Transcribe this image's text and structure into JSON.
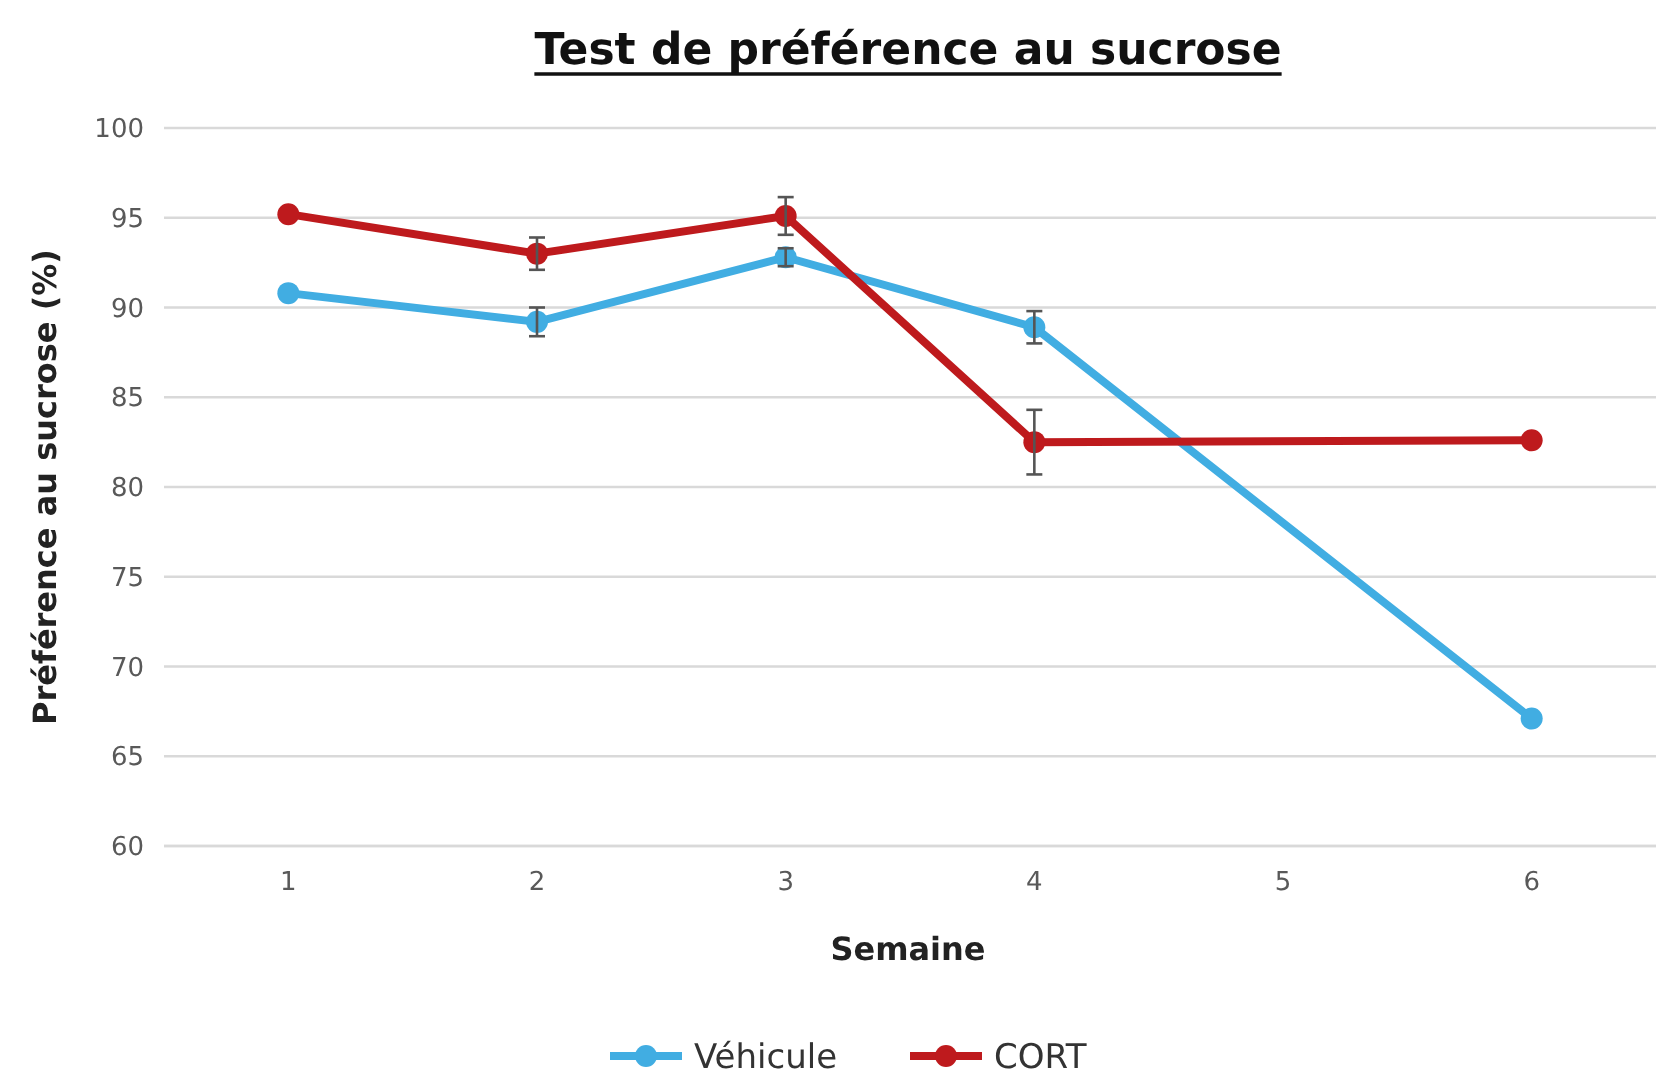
{
  "chart_data": {
    "type": "line",
    "title": "Test de préférence au sucrose",
    "xlabel": "Semaine",
    "ylabel": "Préférence au sucrose (%)",
    "xlim": [
      0.5,
      6.5
    ],
    "xticks": [
      1,
      2,
      3,
      4,
      5,
      6
    ],
    "ylim": [
      60,
      100
    ],
    "yticks": [
      60,
      65,
      70,
      75,
      80,
      85,
      90,
      95,
      100
    ],
    "grid": "y",
    "legend": "bottom",
    "marker": "circle",
    "line_style": "solid",
    "series": [
      {
        "name": "Véhicule",
        "color": "#41ade2",
        "x": [
          1,
          2,
          3,
          4,
          6
        ],
        "values": [
          90.8,
          89.2,
          92.8,
          88.9,
          67.1
        ],
        "errors": [
          null,
          0.8,
          0.5,
          0.9,
          null
        ]
      },
      {
        "name": "CORT",
        "color": "#be1a1d",
        "x": [
          1,
          2,
          3,
          4,
          6
        ],
        "values": [
          95.2,
          93.0,
          95.1,
          82.5,
          82.6
        ],
        "errors": [
          null,
          0.9,
          1.05,
          1.8,
          null
        ]
      }
    ]
  }
}
